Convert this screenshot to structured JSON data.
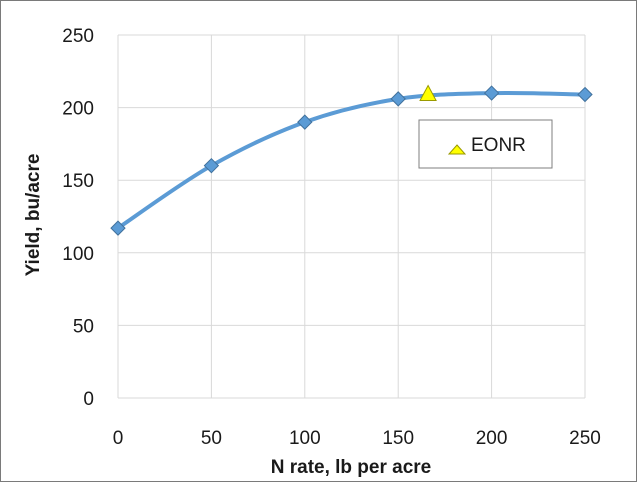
{
  "chart_data": {
    "type": "line",
    "xlabel": "N rate, lb per acre",
    "ylabel": "Yield, bu/acre",
    "xlim": [
      0,
      250
    ],
    "ylim": [
      0,
      250
    ],
    "x_ticks": [
      0,
      50,
      100,
      150,
      200,
      250
    ],
    "y_ticks": [
      0,
      50,
      100,
      150,
      200,
      250
    ],
    "grid": true,
    "series": [
      {
        "marker": "diamond",
        "line_color": "#5b9bd5",
        "marker_color": "#5b9bd5",
        "x": [
          0,
          50,
          100,
          150,
          200,
          250
        ],
        "y": [
          117,
          160,
          190,
          206,
          210,
          209
        ]
      },
      {
        "name": "EONR",
        "marker": "triangle",
        "marker_color": "#ffff00",
        "x": [
          166
        ],
        "y": [
          209
        ]
      }
    ],
    "legend": {
      "entries": [
        "EONR"
      ],
      "placement": "right"
    }
  }
}
